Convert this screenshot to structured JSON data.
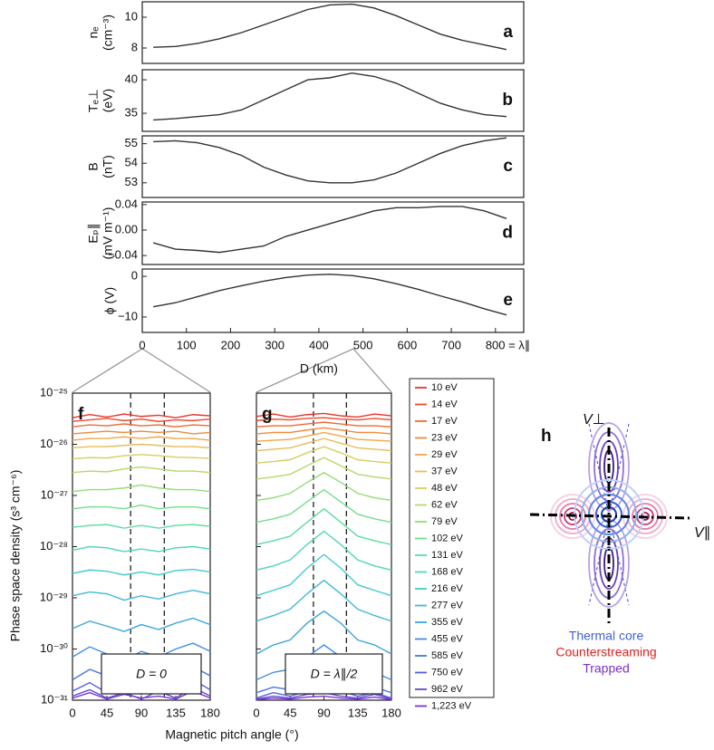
{
  "chart_data": [
    {
      "type": "line",
      "panel": "a",
      "ylabel": [
        "nₑ",
        "(cm⁻³)"
      ],
      "xlim": [
        0,
        864
      ],
      "ylim": [
        7.0,
        11.0
      ],
      "yticks": [
        8,
        10
      ],
      "x": [
        25,
        75,
        125,
        175,
        225,
        275,
        325,
        375,
        425,
        475,
        525,
        575,
        625,
        675,
        725,
        775,
        825
      ],
      "series": [
        {
          "color": "#333333",
          "values": [
            8.05,
            8.1,
            8.3,
            8.6,
            9.0,
            9.5,
            10.0,
            10.5,
            10.8,
            10.85,
            10.6,
            10.1,
            9.5,
            8.9,
            8.5,
            8.2,
            7.9
          ]
        }
      ]
    },
    {
      "type": "line",
      "panel": "b",
      "ylabel": [
        "Tₑ⊥",
        "(eV)"
      ],
      "xlim": [
        0,
        864
      ],
      "ylim": [
        32.3,
        41.5
      ],
      "yticks": [
        35,
        40
      ],
      "x": [
        25,
        75,
        125,
        175,
        225,
        275,
        325,
        375,
        425,
        475,
        525,
        575,
        625,
        675,
        725,
        775,
        825
      ],
      "series": [
        {
          "color": "#333333",
          "values": [
            34.0,
            34.2,
            34.5,
            34.8,
            35.5,
            37.0,
            38.5,
            40.0,
            40.3,
            41.0,
            40.5,
            39.5,
            38.0,
            36.5,
            35.5,
            34.8,
            34.5
          ]
        }
      ]
    },
    {
      "type": "line",
      "panel": "c",
      "ylabel": [
        "B",
        "(nT)"
      ],
      "xlim": [
        0,
        864
      ],
      "ylim": [
        52.25,
        55.4
      ],
      "yticks": [
        53,
        54,
        55
      ],
      "x": [
        25,
        75,
        125,
        175,
        225,
        275,
        325,
        375,
        425,
        475,
        525,
        575,
        625,
        675,
        725,
        775,
        825
      ],
      "series": [
        {
          "color": "#333333",
          "values": [
            55.1,
            55.15,
            55.05,
            54.8,
            54.4,
            53.8,
            53.4,
            53.1,
            53.0,
            53.0,
            53.15,
            53.5,
            54.0,
            54.5,
            54.9,
            55.15,
            55.3
          ]
        }
      ]
    },
    {
      "type": "line",
      "panel": "d",
      "ylabel": [
        "Eₚ∥",
        "(mV m⁻¹)"
      ],
      "xlim": [
        0,
        864
      ],
      "ylim": [
        -0.054,
        0.044
      ],
      "yticks": [
        {
          "value": -0.04,
          "label": "−0.04"
        },
        {
          "value": 0,
          "label": "0.00"
        },
        0.04
      ],
      "x": [
        25,
        75,
        125,
        175,
        225,
        275,
        325,
        375,
        425,
        475,
        525,
        575,
        625,
        675,
        725,
        775,
        825
      ],
      "series": [
        {
          "color": "#333333",
          "values": [
            -0.02,
            -0.03,
            -0.032,
            -0.035,
            -0.03,
            -0.025,
            -0.01,
            0.0,
            0.01,
            0.02,
            0.03,
            0.035,
            0.035,
            0.037,
            0.037,
            0.03,
            0.018
          ]
        }
      ]
    },
    {
      "type": "line",
      "panel": "e",
      "ylabel": [
        "ϕ (V)"
      ],
      "xlabel": "D (km)",
      "xlim": [
        0,
        864
      ],
      "ylim": [
        -13.8,
        1.8
      ],
      "yticks": [
        {
          "value": -10,
          "label": "−10"
        },
        0
      ],
      "xticks": [
        0,
        100,
        200,
        300,
        400,
        500,
        600,
        700,
        {
          "value": 800,
          "label": "800 = λ∥"
        }
      ],
      "x": [
        25,
        75,
        125,
        175,
        225,
        275,
        325,
        375,
        425,
        475,
        525,
        575,
        625,
        675,
        725,
        775,
        825
      ],
      "series": [
        {
          "color": "#333333",
          "values": [
            -7.5,
            -6.5,
            -5.0,
            -3.5,
            -2.3,
            -1.2,
            -0.3,
            0.3,
            0.5,
            0.2,
            -0.6,
            -1.8,
            -3.2,
            -4.8,
            -6.3,
            -8.0,
            -9.5
          ]
        }
      ]
    },
    {
      "type": "line",
      "panel": "f",
      "log_y": true,
      "ylabel": "Phase space density (s³ cm⁻⁶)",
      "xlabel": "Magnetic pitch angle (°)",
      "annotation": "D = 0",
      "vlines": [
        76,
        120
      ],
      "xlim": [
        0,
        180
      ],
      "ylim": [
        1e-31,
        1e-25
      ],
      "xticks": [
        0,
        45,
        90,
        135,
        180
      ],
      "yticks": [
        {
          "value": 1e-31,
          "label": "10⁻³¹"
        },
        {
          "value": 1e-30,
          "label": "10⁻³⁰"
        },
        {
          "value": 1e-29,
          "label": "10⁻²⁹"
        },
        {
          "value": 1e-28,
          "label": "10⁻²⁸"
        },
        {
          "value": 1e-27,
          "label": "10⁻²⁷"
        },
        {
          "value": 1e-26,
          "label": "10⁻²⁶"
        },
        {
          "value": 1e-25,
          "label": "10⁻²⁵"
        }
      ],
      "x": [
        0,
        22.5,
        45,
        67.5,
        90,
        112.5,
        135,
        157.5,
        180
      ],
      "series": [
        {
          "name": "10 eV",
          "color": "#e8352a",
          "values": [
            3.3e-26,
            3.8e-26,
            3.4e-26,
            3.9e-26,
            3.5e-26,
            3.7e-26,
            3.3e-26,
            3.8e-26,
            3.6e-26
          ]
        },
        {
          "name": "14 eV",
          "color": "#ec4a2c",
          "values": [
            2.8e-26,
            3e-26,
            3.2e-26,
            2.9e-26,
            3.1e-26,
            2.8e-26,
            3e-26,
            2.9e-26,
            3.1e-26
          ]
        },
        {
          "name": "17 eV",
          "color": "#ee6a31",
          "values": [
            2.2e-26,
            2.4e-26,
            2.3e-26,
            2.5e-26,
            2.3e-26,
            2.4e-26,
            2.2e-26,
            2.4e-26,
            2.3e-26
          ]
        },
        {
          "name": "23 eV",
          "color": "#f08a3a",
          "values": [
            1.6e-26,
            1.7e-26,
            1.8e-26,
            1.7e-26,
            1.8e-26,
            1.7e-26,
            1.8e-26,
            1.6e-26,
            1.7e-26
          ]
        },
        {
          "name": "29 eV",
          "color": "#f2a645",
          "values": [
            1.2e-26,
            1.3e-26,
            1.3e-26,
            1.4e-26,
            1.3e-26,
            1.4e-26,
            1.3e-26,
            1.3e-26,
            1.2e-26
          ]
        },
        {
          "name": "37 eV",
          "color": "#e9bc55",
          "values": [
            8.5e-27,
            9e-27,
            9e-27,
            9.5e-27,
            1e-26,
            9.5e-27,
            9e-27,
            9e-27,
            8.5e-27
          ]
        },
        {
          "name": "48 eV",
          "color": "#d6cf60",
          "values": [
            5.2e-27,
            5.5e-27,
            5.4e-27,
            6e-27,
            6.3e-27,
            6e-27,
            5.6e-27,
            5.5e-27,
            5.3e-27
          ]
        },
        {
          "name": "62 eV",
          "color": "#b6d86a",
          "values": [
            2.8e-27,
            3e-27,
            2.9e-27,
            3.3e-27,
            3.6e-27,
            3.3e-27,
            3e-27,
            3e-27,
            2.8e-27
          ]
        },
        {
          "name": "79 eV",
          "color": "#93dc78",
          "values": [
            1.2e-27,
            1.3e-27,
            1.3e-27,
            1.4e-27,
            1.6e-27,
            1.4e-27,
            1.3e-27,
            1.3e-27,
            1.2e-27
          ]
        },
        {
          "name": "102 eV",
          "color": "#74de8d",
          "values": [
            5.5e-28,
            6e-28,
            6e-28,
            5.5e-28,
            6.5e-28,
            5.5e-28,
            6e-28,
            6e-28,
            5.5e-28
          ]
        },
        {
          "name": "131 eV",
          "color": "#5ddca4",
          "values": [
            2.4e-28,
            2.6e-28,
            2.7e-28,
            2.3e-28,
            2.6e-28,
            2.3e-28,
            2.6e-28,
            2.7e-28,
            2.5e-28
          ]
        },
        {
          "name": "168 eV",
          "color": "#4dd6bb",
          "values": [
            8.5e-29,
            1e-28,
            9.5e-29,
            8e-29,
            9e-29,
            8e-29,
            9.5e-29,
            1e-28,
            9e-29
          ]
        },
        {
          "name": "216 eV",
          "color": "#42cbcc",
          "values": [
            3e-29,
            3.5e-29,
            3.3e-29,
            2.8e-29,
            3.2e-29,
            2.8e-29,
            3.4e-29,
            3.6e-29,
            3.2e-29
          ]
        },
        {
          "name": "277 eV",
          "color": "#3fbad6",
          "values": [
            1.1e-29,
            1.3e-29,
            1.2e-29,
            9e-30,
            1.1e-29,
            9.5e-30,
            1.2e-29,
            1.4e-29,
            1.2e-29
          ]
        },
        {
          "name": "355 eV",
          "color": "#3fa6dc",
          "values": [
            2.5e-30,
            3.5e-30,
            2.8e-30,
            2.2e-30,
            3e-30,
            2.4e-30,
            3.2e-30,
            4e-30,
            3e-30
          ]
        },
        {
          "name": "455 eV",
          "color": "#4190e0",
          "values": [
            7e-31,
            1.1e-30,
            8e-31,
            6e-31,
            9e-31,
            7e-31,
            1e-30,
            1.3e-30,
            9e-31
          ]
        },
        {
          "name": "585 eV",
          "color": "#4776e2",
          "values": [
            2.5e-31,
            4e-31,
            3e-31,
            2.2e-31,
            3.5e-31,
            2.5e-31,
            3.8e-31,
            4.5e-31,
            3e-31
          ]
        },
        {
          "name": "750 eV",
          "color": "#5260e0",
          "values": [
            1.5e-31,
            2.2e-31,
            1.4e-31,
            1.8e-31,
            1.3e-31,
            2e-31,
            1.5e-31,
            2.5e-31,
            1.6e-31
          ]
        },
        {
          "name": "962 eV",
          "color": "#6249d8",
          "values": [
            1.2e-31,
            1.6e-31,
            1.1e-31,
            1.4e-31,
            1.05e-31,
            1.5e-31,
            1.1e-31,
            1.8e-31,
            1.2e-31
          ]
        },
        {
          "name": "1,223 eV",
          "color": "#7a34ce",
          "values": [
            1.1e-31,
            1.4e-31,
            1.05e-31,
            1.3e-31,
            1.1e-31,
            1.2e-31,
            1.05e-31,
            1.5e-31,
            1.1e-31
          ]
        }
      ]
    },
    {
      "type": "line",
      "panel": "g",
      "log_y": true,
      "annotation": "D = λ∥/2",
      "vlines": [
        76,
        120
      ],
      "xlim": [
        0,
        180
      ],
      "ylim": [
        1e-31,
        1e-25
      ],
      "xticks": [
        0,
        45,
        90,
        135,
        180
      ],
      "ytick_labels": false,
      "yticks": [
        1e-31,
        1e-30,
        1e-29,
        1e-28,
        1e-27,
        1e-26,
        1e-25
      ],
      "x": [
        0,
        22.5,
        45,
        67.5,
        90,
        112.5,
        135,
        157.5,
        180
      ],
      "series": [
        {
          "values": [
            3.5e-26,
            3.9e-26,
            3.4e-26,
            3.8e-26,
            4e-26,
            3.6e-26,
            3.4e-26,
            3.9e-26,
            3.6e-26
          ]
        },
        {
          "values": [
            2.9e-26,
            3.1e-26,
            3e-26,
            3.2e-26,
            3.3e-26,
            3.1e-26,
            3e-26,
            3.2e-26,
            3e-26
          ]
        },
        {
          "values": [
            2.2e-26,
            2.3e-26,
            2.3e-26,
            2.5e-26,
            2.7e-26,
            2.5e-26,
            2.3e-26,
            2.3e-26,
            2.2e-26
          ]
        },
        {
          "values": [
            1.6e-26,
            1.7e-26,
            1.7e-26,
            1.9e-26,
            2.1e-26,
            1.9e-26,
            1.7e-26,
            1.7e-26,
            1.6e-26
          ]
        },
        {
          "values": [
            1.15e-26,
            1.2e-26,
            1.25e-26,
            1.45e-26,
            1.7e-26,
            1.45e-26,
            1.25e-26,
            1.2e-26,
            1.15e-26
          ]
        },
        {
          "values": [
            7.5e-27,
            8e-27,
            8.5e-27,
            1.05e-26,
            1.3e-26,
            1.05e-26,
            8.5e-27,
            8e-27,
            7.5e-27
          ]
        },
        {
          "values": [
            4.3e-27,
            4.6e-27,
            5e-27,
            6.8e-27,
            9e-27,
            6.8e-27,
            5e-27,
            4.6e-27,
            4.3e-27
          ]
        },
        {
          "values": [
            2.1e-27,
            2.3e-27,
            2.6e-27,
            3.8e-27,
            5.5e-27,
            3.8e-27,
            2.6e-27,
            2.3e-27,
            2.1e-27
          ]
        },
        {
          "values": [
            8e-28,
            9e-28,
            1.1e-27,
            1.8e-27,
            2.8e-27,
            1.8e-27,
            1.1e-27,
            9e-28,
            8e-28
          ]
        },
        {
          "values": [
            3e-28,
            3.5e-28,
            4.3e-28,
            7.5e-28,
            1.3e-27,
            7.5e-28,
            4.3e-28,
            3.5e-28,
            3e-28
          ]
        },
        {
          "values": [
            1.1e-28,
            1.3e-28,
            1.6e-28,
            3e-28,
            5.5e-28,
            3e-28,
            1.6e-28,
            1.3e-28,
            1.1e-28
          ]
        },
        {
          "values": [
            3.5e-29,
            4.2e-29,
            5.5e-29,
            1.1e-28,
            2e-28,
            1.1e-28,
            5.5e-29,
            4.2e-29,
            3.5e-29
          ]
        },
        {
          "values": [
            1.1e-29,
            1.4e-29,
            1.8e-29,
            3.8e-29,
            7e-29,
            3.8e-29,
            1.8e-29,
            1.4e-29,
            1.1e-29
          ]
        },
        {
          "values": [
            3.5e-30,
            4.5e-30,
            6e-30,
            1.2e-29,
            2.2e-29,
            1.2e-29,
            6e-30,
            4.5e-30,
            3.5e-30
          ]
        },
        {
          "values": [
            8e-31,
            1.2e-30,
            1.5e-30,
            3.2e-30,
            5.5e-30,
            3.2e-30,
            1.5e-30,
            1.2e-30,
            8e-31
          ]
        },
        {
          "values": [
            2.5e-31,
            3.5e-31,
            4e-31,
            7e-31,
            1.2e-30,
            7e-31,
            4e-31,
            3.5e-31,
            2.5e-31
          ]
        },
        {
          "values": [
            1.4e-31,
            1.8e-31,
            1.6e-31,
            2.5e-31,
            3.5e-31,
            2.5e-31,
            1.6e-31,
            1.8e-31,
            1.4e-31
          ]
        },
        {
          "values": [
            1.1e-31,
            1.4e-31,
            1.2e-31,
            1.5e-31,
            1.8e-31,
            1.5e-31,
            1.2e-31,
            1.4e-31,
            1.1e-31
          ]
        },
        {
          "values": [
            1.05e-31,
            1.2e-31,
            1.1e-31,
            1.3e-31,
            1.4e-31,
            1.2e-31,
            1.1e-31,
            1.3e-31,
            1.05e-31
          ]
        },
        {
          "values": [
            1.02e-31,
            1.1e-31,
            1.05e-31,
            1.15e-31,
            1.2e-31,
            1.1e-31,
            1.05e-31,
            1.15e-31,
            1.02e-31
          ]
        }
      ]
    }
  ],
  "diagram": {
    "label": "h",
    "v_perp": "V⊥",
    "v_par": "V∥",
    "thermal_core": "Thermal core",
    "counterstreaming": "Counterstreaming",
    "trapped": "Trapped"
  }
}
